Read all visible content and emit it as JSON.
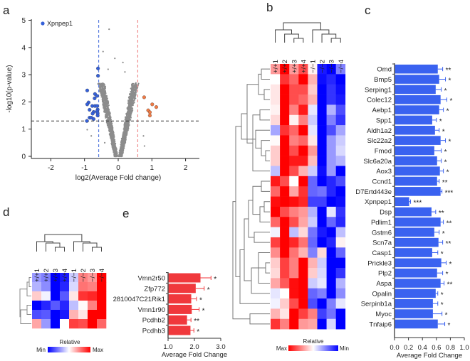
{
  "panel_labels": [
    "a",
    "b",
    "c",
    "d",
    "e"
  ],
  "colors": {
    "down": "#3560d8",
    "up": "#ee7a45",
    "cloud": "#8c8c8c",
    "bar_c": "#3a62f0",
    "bar_e": "#f0383c",
    "heat_max": "#ff0000",
    "heat_min": "#0000ff"
  },
  "chart_data": [
    {
      "panel": "a",
      "type": "scatter",
      "title": "",
      "xlabel": "log2(Average Fold change)",
      "ylabel": "-log10(p-value)",
      "xlim": [
        -2.58,
        2.4
      ],
      "ylim": [
        0,
        5
      ],
      "xticks": [
        -2,
        -1,
        0,
        1,
        2
      ],
      "yticks": [
        0,
        1,
        2,
        3,
        4,
        5
      ],
      "thresholds": {
        "x_low": -0.58,
        "x_high": 0.58,
        "y": 1.3
      },
      "legend": {
        "label": "Xpnpep1",
        "placement": "top-left"
      },
      "series": [
        {
          "name": "down",
          "points": [
            [
              -0.6,
              3.23
            ],
            [
              -0.6,
              2.96
            ],
            [
              -0.92,
              2.42
            ],
            [
              -0.69,
              2.29
            ],
            [
              -0.63,
              2.22
            ],
            [
              -0.7,
              2.13
            ],
            [
              -0.88,
              1.98
            ],
            [
              -0.92,
              1.91
            ],
            [
              -0.77,
              1.85
            ],
            [
              -0.69,
              1.85
            ],
            [
              -0.63,
              1.85
            ],
            [
              -0.85,
              1.71
            ],
            [
              -0.61,
              1.72
            ],
            [
              -0.73,
              1.63
            ],
            [
              -0.63,
              1.65
            ],
            [
              -0.76,
              1.57
            ],
            [
              -0.61,
              1.58
            ],
            [
              -0.61,
              1.5
            ],
            [
              -0.85,
              1.42
            ],
            [
              -0.8,
              1.42
            ],
            [
              -0.73,
              1.37
            ],
            [
              -0.93,
              1.3
            ]
          ]
        },
        {
          "name": "up",
          "points": [
            [
              0.77,
              2.17
            ],
            [
              1.01,
              1.91
            ],
            [
              1.13,
              1.81
            ],
            [
              0.89,
              1.69
            ],
            [
              0.94,
              1.62
            ],
            [
              0.94,
              1.5
            ]
          ]
        }
      ]
    },
    {
      "panel": "b",
      "type": "heatmap",
      "columns": [
        "+/+1",
        "+/+2",
        "+/+3",
        "+/+4",
        "−/−1",
        "−/−2",
        "−/−3",
        "−/−4"
      ],
      "rows": [
        "Omd",
        "Bmp5",
        "Serping1",
        "Colec12",
        "Aebp1",
        "Spp1",
        "Aldh1a2",
        "Slc22a2",
        "Fmod",
        "Slc6a20a",
        "Aox3",
        "Ccnd1",
        "D7Ertd443e",
        "Xpnpep1",
        "Dsp",
        "Pdlim1",
        "Gstm6",
        "Scn7a",
        "Casp1",
        "Prickle3",
        "Plp2",
        "Aspa",
        "Opalin",
        "Serpinb1a",
        "Myoc",
        "Tnfaip6"
      ],
      "values": [
        [
          0.4,
          1,
          0.4,
          0.7,
          0.05,
          -0.9,
          -1,
          -0.5
        ],
        [
          0,
          0.8,
          0.6,
          1,
          0.3,
          -0.95,
          -0.85,
          -1
        ],
        [
          0.1,
          1,
          0.7,
          0.7,
          0.2,
          -1,
          -0.8,
          -0.95
        ],
        [
          0.1,
          1,
          0.7,
          0.6,
          0.3,
          -1,
          -0.8,
          -0.9
        ],
        [
          0.05,
          1,
          0.5,
          0.9,
          -0.1,
          -1,
          -0.3,
          -0.7
        ],
        [
          0.15,
          1,
          0.05,
          0.5,
          -0.2,
          -1,
          -0.5,
          -0.8
        ],
        [
          -0.35,
          0.8,
          0.6,
          1,
          -0.1,
          -1,
          -0.7,
          -0.35
        ],
        [
          0.02,
          1,
          0.5,
          0.6,
          0.1,
          -1,
          -0.4,
          -0.2
        ],
        [
          0.2,
          1,
          0.7,
          1,
          0.4,
          -1,
          -0.4,
          -0.15
        ],
        [
          0.2,
          1,
          0.9,
          0.9,
          0.25,
          -1,
          -0.4,
          -0.3
        ],
        [
          -0.25,
          1,
          0.7,
          0.3,
          -0.2,
          -0.95,
          -0.4,
          -1
        ],
        [
          0.9,
          0.7,
          0,
          1,
          -0.6,
          -1,
          -0.85,
          -0.7
        ],
        [
          0.6,
          1,
          0.35,
          0.8,
          -0.6,
          -0.55,
          -0.85,
          -1
        ],
        [
          0.95,
          1,
          0.95,
          0.85,
          -0.75,
          -0.75,
          -1,
          -0.95
        ],
        [
          1,
          0.7,
          0.5,
          0.4,
          -0.3,
          -1,
          -0.1,
          -0.8
        ],
        [
          0.6,
          1,
          0.7,
          0.35,
          -0.2,
          -1,
          -0.6,
          -0.85
        ],
        [
          -0.05,
          1,
          -0.25,
          0.15,
          -0.55,
          -0.9,
          -1,
          -0.25
        ],
        [
          0.75,
          1,
          0.85,
          0.55,
          -0.6,
          -1,
          -0.85,
          0.05
        ],
        [
          0.45,
          1,
          0.55,
          0.3,
          -0.5,
          0.15,
          -1,
          -0.6
        ],
        [
          0.2,
          0.75,
          0.5,
          1,
          0.3,
          -0.2,
          -1,
          -1
        ],
        [
          0.15,
          0.75,
          0.5,
          1,
          0.2,
          -0.15,
          -1,
          -0.8
        ],
        [
          0.35,
          0.65,
          0.95,
          1,
          -0.2,
          -0.1,
          -1,
          -0.3
        ],
        [
          -0.1,
          0,
          0.95,
          1,
          -0.6,
          -0.5,
          -1,
          -0.45
        ],
        [
          -0.05,
          0.2,
          0.7,
          1,
          -0.7,
          -1,
          -0.5,
          -0.1
        ],
        [
          0.3,
          0.1,
          1,
          0.75,
          0.5,
          -0.75,
          -0.55,
          -1
        ],
        [
          0.8,
          0.5,
          1,
          0.4,
          0.35,
          -1,
          -0.15,
          -1
        ]
      ],
      "legend": {
        "title": "Relative",
        "max_label": "Max",
        "min_label": "Min"
      }
    },
    {
      "panel": "c",
      "type": "bar",
      "orientation": "horizontal",
      "categories": [
        "Omd",
        "Bmp5",
        "Serping1",
        "Colec12",
        "Aebp1",
        "Spp1",
        "Aldh1a2",
        "Slc22a2",
        "Fmod",
        "Slc6a20a",
        "Aox3",
        "Ccnd1",
        "D7Ertd443e",
        "Xpnpep1",
        "Dsp",
        "Pdlim1",
        "Gstm6",
        "Scn7a",
        "Casp1",
        "Prickle3",
        "Plp2",
        "Aspa",
        "Opalin",
        "Serpinb1a",
        "Myoc",
        "Tnfaip6"
      ],
      "values": [
        0.62,
        0.64,
        0.59,
        0.66,
        0.64,
        0.54,
        0.58,
        0.66,
        0.57,
        0.61,
        0.65,
        0.61,
        0.66,
        0.21,
        0.53,
        0.66,
        0.57,
        0.63,
        0.54,
        0.67,
        0.61,
        0.66,
        0.59,
        0.55,
        0.55,
        0.62
      ],
      "errors": [
        0.07,
        0.09,
        0.08,
        0.09,
        0.06,
        0.06,
        0.06,
        0.07,
        0.1,
        0.06,
        0.05,
        0.03,
        0.02,
        0.02,
        0.06,
        0.04,
        0.07,
        0.06,
        0.08,
        0.07,
        0.08,
        0.05,
        0.03,
        0.07,
        0.13,
        0.1
      ],
      "significance": [
        "**",
        "*",
        "*",
        "*",
        "*",
        "*",
        "*",
        "*",
        "*",
        "*",
        "*",
        "**",
        "***",
        "***",
        "**",
        "**",
        "*",
        "**",
        "*",
        "*",
        "*",
        "**",
        "*",
        "*",
        "*",
        "*"
      ],
      "xlabel": "Average Fold Change",
      "xlim": [
        0,
        1.0
      ],
      "xticks": [
        "0.0",
        "0.2",
        "0.4",
        "0.6",
        "0.8",
        "1.0"
      ]
    },
    {
      "panel": "d",
      "type": "heatmap",
      "columns": [
        "+/+1",
        "+/+2",
        "+/+3",
        "+/+4",
        "−/−1",
        "−/−2",
        "−/−3",
        "−/−4"
      ],
      "rows": [
        "Vmn2r50",
        "Zfp772",
        "2810047C21Rik1",
        "Vmn1r90",
        "Pcdhb2",
        "Pcdhb3"
      ],
      "values": [
        [
          -0.4,
          -0.5,
          -1,
          -0.9,
          -0.2,
          0.5,
          0.4,
          1
        ],
        [
          -0.3,
          -0.45,
          -1,
          -0.85,
          -0.15,
          0.55,
          0.5,
          1
        ],
        [
          0.2,
          -0.05,
          -1,
          -0.65,
          0.1,
          0.8,
          0.85,
          1
        ],
        [
          -1,
          -0.85,
          -0.65,
          -0.85,
          -0.25,
          0.02,
          0.5,
          1
        ],
        [
          -0.7,
          -0.65,
          -1,
          -0.9,
          0.3,
          0.1,
          1,
          1
        ],
        [
          0.35,
          -0.4,
          -1,
          0,
          0.75,
          0.7,
          1,
          0.6
        ]
      ],
      "legend": {
        "title": "Relative",
        "max_label": "Max",
        "min_label": "Min"
      }
    },
    {
      "panel": "e",
      "type": "bar",
      "orientation": "horizontal",
      "categories": [
        "Vmn2r50",
        "Zfp772",
        "2810047C21Rik1",
        "Vmn1r90",
        "Pcdhb2",
        "Pcdhb3"
      ],
      "values": [
        2.23,
        2.05,
        1.88,
        1.9,
        1.72,
        1.85
      ],
      "errors": [
        0.4,
        0.32,
        0.2,
        0.28,
        0.15,
        0.13
      ],
      "significance": [
        "*",
        "*",
        "*",
        "*",
        "**",
        "*"
      ],
      "xlabel": "Average Fold Change",
      "xlim": [
        1.0,
        3.0
      ],
      "xticks": [
        "1.0",
        "2.0",
        "3.0"
      ]
    }
  ]
}
